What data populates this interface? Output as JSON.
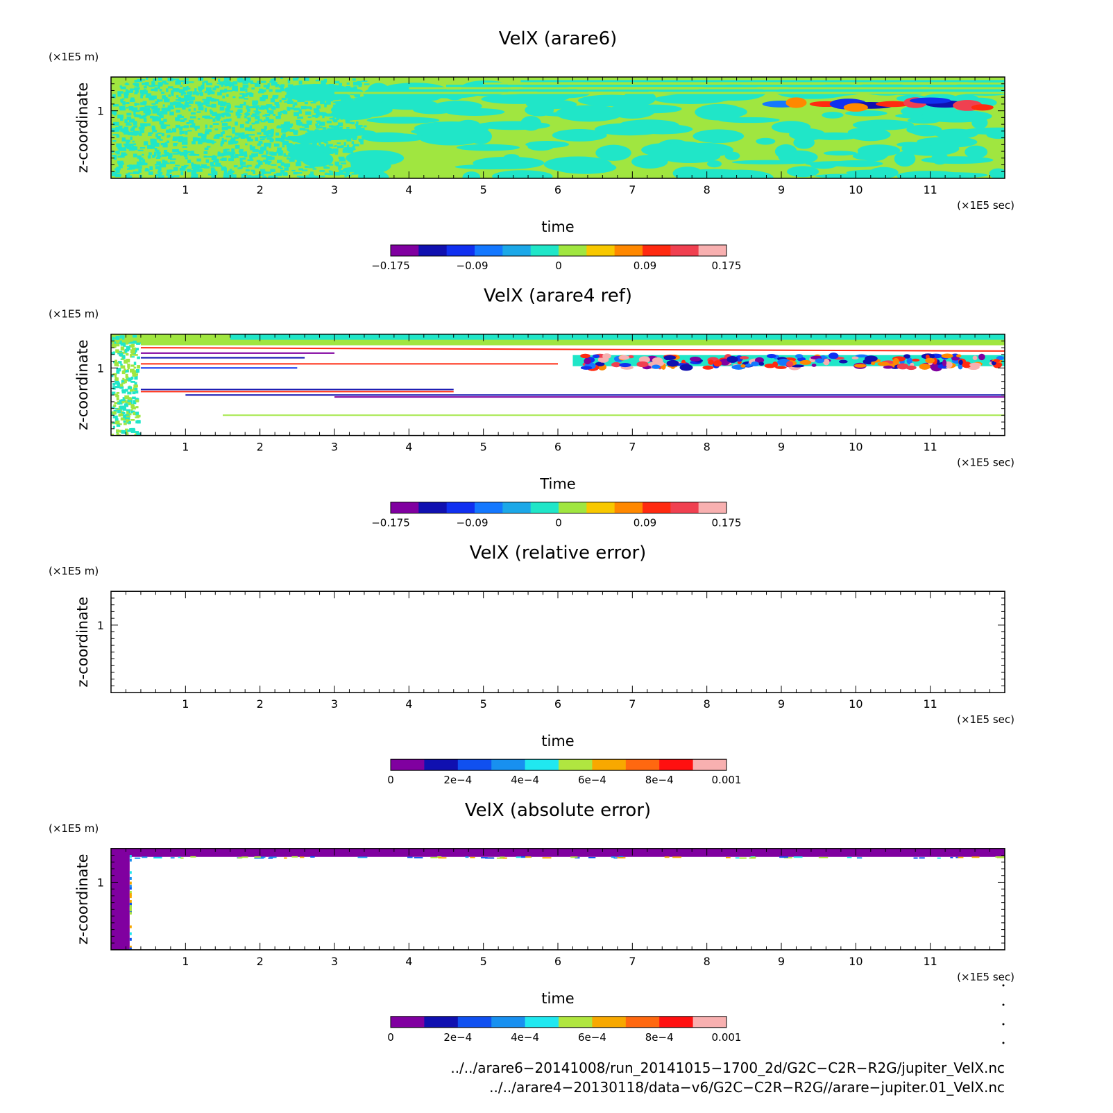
{
  "chart_data": [
    {
      "type": "heatmap",
      "title": "VelX (arare6)",
      "xlabel": "time",
      "ylabel": "z-coordinate",
      "x_unit": "(×1E5 sec)",
      "y_unit": "(×1E5 m)",
      "xlim": [
        0,
        12
      ],
      "ylim": [
        0,
        1.5
      ],
      "x_ticks": [
        "1",
        "2",
        "3",
        "4",
        "5",
        "6",
        "7",
        "8",
        "9",
        "10",
        "11"
      ],
      "y_ticks": [
        "1"
      ],
      "pattern": "noisy",
      "colorbar": {
        "range": [
          -0.175,
          0.175
        ],
        "tick_labels": [
          "−0.175",
          "−0.09",
          "0",
          "0.09",
          "0.175"
        ],
        "colors": [
          "#8000a0",
          "#1010b0",
          "#1030f0",
          "#1478ff",
          "#1ca8e8",
          "#20e6c8",
          "#a0e640",
          "#f8c800",
          "#ff8800",
          "#ff2a10",
          "#f04050",
          "#f8b0b0"
        ]
      }
    },
    {
      "type": "heatmap",
      "title": "VelX (arare4 ref)",
      "xlabel": "Time",
      "ylabel": "z-coordinate",
      "x_unit": "(×1E5 sec)",
      "y_unit": "(×1E5 m)",
      "xlim": [
        0,
        12
      ],
      "ylim": [
        0,
        1.5
      ],
      "x_ticks": [
        "1",
        "2",
        "3",
        "4",
        "5",
        "6",
        "7",
        "8",
        "9",
        "10",
        "11"
      ],
      "y_ticks": [
        "1"
      ],
      "pattern": "layered",
      "colorbar": {
        "range": [
          -0.175,
          0.175
        ],
        "tick_labels": [
          "−0.175",
          "−0.09",
          "0",
          "0.09",
          "0.175"
        ],
        "colors": [
          "#8000a0",
          "#1010b0",
          "#1030f0",
          "#1478ff",
          "#1ca8e8",
          "#20e6c8",
          "#a0e640",
          "#f8c800",
          "#ff8800",
          "#ff2a10",
          "#f04050",
          "#f8b0b0"
        ]
      }
    },
    {
      "type": "heatmap",
      "title": "VelX (relative error)",
      "xlabel": "time",
      "ylabel": "z-coordinate",
      "x_unit": "(×1E5 sec)",
      "y_unit": "(×1E5 m)",
      "xlim": [
        0,
        12
      ],
      "ylim": [
        0,
        1.5
      ],
      "x_ticks": [
        "1",
        "2",
        "3",
        "4",
        "5",
        "6",
        "7",
        "8",
        "9",
        "10",
        "11"
      ],
      "y_ticks": [
        "1"
      ],
      "pattern": "empty",
      "colorbar": {
        "range": [
          0,
          0.001
        ],
        "tick_labels": [
          "0",
          "2e−4",
          "4e−4",
          "6e−4",
          "8e−4",
          "0.001"
        ],
        "colors": [
          "#8000a0",
          "#1010b0",
          "#1050f0",
          "#1890f0",
          "#20e8f0",
          "#b0e640",
          "#f8a800",
          "#ff6810",
          "#ff1010",
          "#f8b0b0"
        ]
      }
    },
    {
      "type": "heatmap",
      "title": "VelX (absolute error)",
      "xlabel": "time",
      "ylabel": "z-coordinate",
      "x_unit": "(×1E5 sec)",
      "y_unit": "(×1E5 m)",
      "xlim": [
        0,
        12
      ],
      "ylim": [
        0,
        1.5
      ],
      "x_ticks": [
        "1",
        "2",
        "3",
        "4",
        "5",
        "6",
        "7",
        "8",
        "9",
        "10",
        "11"
      ],
      "y_ticks": [
        "1"
      ],
      "pattern": "error",
      "colorbar": {
        "range": [
          0,
          0.001
        ],
        "tick_labels": [
          "0",
          "2e−4",
          "4e−4",
          "6e−4",
          "8e−4",
          "0.001"
        ],
        "colors": [
          "#8000a0",
          "#1010b0",
          "#1050f0",
          "#1890f0",
          "#20e8f0",
          "#b0e640",
          "#f8a800",
          "#ff6810",
          "#ff1010",
          "#f8b0b0"
        ]
      }
    }
  ],
  "footer": {
    "line1": "../../arare6−20141008/run_20141015−1700_2d/G2C−C2R−R2G/jupiter_VelX.nc",
    "line2": "../../arare4−20130118/data−v6/G2C−C2R−R2G//arare−jupiter.01_VelX.nc"
  }
}
